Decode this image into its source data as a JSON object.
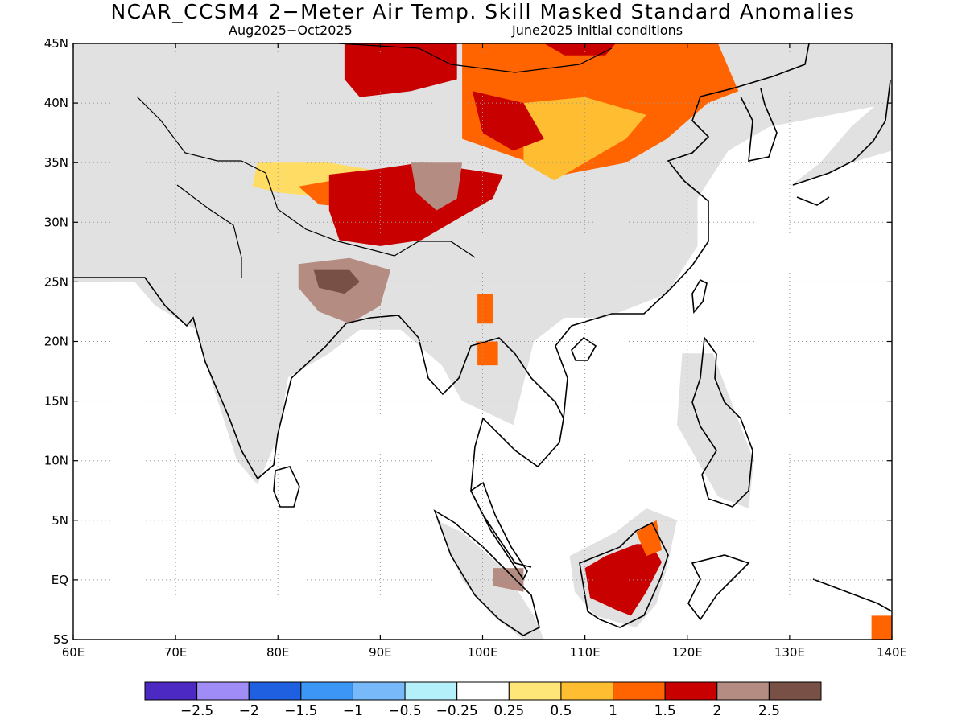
{
  "header": {
    "title": "NCAR_CCSM4 2−Meter Air Temp. Skill Masked Standard Anomalies",
    "period": "Aug2025−Oct2025",
    "init": "June2025 initial conditions"
  },
  "map": {
    "lon_range": [
      60,
      140
    ],
    "lat_range": [
      -5,
      45
    ],
    "lon_ticks": [
      {
        "v": 60,
        "label": "60E"
      },
      {
        "v": 70,
        "label": "70E"
      },
      {
        "v": 80,
        "label": "80E"
      },
      {
        "v": 90,
        "label": "90E"
      },
      {
        "v": 100,
        "label": "100E"
      },
      {
        "v": 110,
        "label": "110E"
      },
      {
        "v": 120,
        "label": "120E"
      },
      {
        "v": 130,
        "label": "130E"
      },
      {
        "v": 140,
        "label": "140E"
      }
    ],
    "lat_ticks": [
      {
        "v": 45,
        "label": "45N"
      },
      {
        "v": 40,
        "label": "40N"
      },
      {
        "v": 35,
        "label": "35N"
      },
      {
        "v": 30,
        "label": "30N"
      },
      {
        "v": 25,
        "label": "25N"
      },
      {
        "v": 20,
        "label": "20N"
      },
      {
        "v": 15,
        "label": "15N"
      },
      {
        "v": 10,
        "label": "10N"
      },
      {
        "v": 5,
        "label": "5N"
      },
      {
        "v": 0,
        "label": "EQ"
      },
      {
        "v": -5,
        "label": "5S"
      }
    ],
    "mask_color": "#e1e1e1",
    "regions": [
      {
        "name": "warm-1-0-north-china",
        "color": "#ff6400",
        "pts": [
          [
            98,
            45
          ],
          [
            123,
            45
          ],
          [
            125,
            41
          ],
          [
            122,
            40
          ],
          [
            118,
            37
          ],
          [
            114,
            35
          ],
          [
            108,
            34
          ],
          [
            103,
            35.5
          ],
          [
            98,
            37
          ]
        ]
      },
      {
        "name": "warm-0-5-ordos",
        "color": "#ffbe32",
        "pts": [
          [
            104,
            40
          ],
          [
            110,
            40.5
          ],
          [
            116,
            39
          ],
          [
            114,
            37
          ],
          [
            110,
            35
          ],
          [
            107,
            33.5
          ],
          [
            104,
            35
          ]
        ]
      },
      {
        "name": "warm-1-5-central-asia",
        "color": "#c80000",
        "pts": [
          [
            86.5,
            45
          ],
          [
            97.5,
            45
          ],
          [
            97.5,
            42
          ],
          [
            93,
            41
          ],
          [
            88,
            40.5
          ],
          [
            86.5,
            42
          ]
        ]
      },
      {
        "name": "warm-1-5-north-edge",
        "color": "#c80000",
        "pts": [
          [
            106,
            45
          ],
          [
            113,
            45
          ],
          [
            112,
            44
          ],
          [
            108,
            44
          ]
        ]
      },
      {
        "name": "warm-1-5-taklamakan-east",
        "color": "#c80000",
        "pts": [
          [
            99,
            41
          ],
          [
            104,
            40
          ],
          [
            106,
            37
          ],
          [
            103,
            36
          ],
          [
            100,
            37.5
          ]
        ]
      },
      {
        "name": "warm-0-5-tibet-band",
        "color": "#ffdc64",
        "pts": [
          [
            78,
            35
          ],
          [
            85,
            35
          ],
          [
            92,
            34
          ],
          [
            96,
            33
          ],
          [
            92,
            31
          ],
          [
            86,
            32
          ],
          [
            80,
            32.5
          ],
          [
            77.5,
            33
          ]
        ]
      },
      {
        "name": "warm-1-0-tibet",
        "color": "#ff6400",
        "pts": [
          [
            82,
            33
          ],
          [
            92,
            34.5
          ],
          [
            96,
            34
          ],
          [
            101,
            33
          ],
          [
            96,
            31
          ],
          [
            90,
            31
          ],
          [
            84,
            31.5
          ]
        ]
      },
      {
        "name": "warm-1-5-tibet",
        "color": "#c80000",
        "pts": [
          [
            85,
            34
          ],
          [
            90,
            34.5
          ],
          [
            94,
            35
          ],
          [
            98,
            34.5
          ],
          [
            102,
            34
          ],
          [
            101,
            32
          ],
          [
            97,
            30
          ],
          [
            94,
            28.5
          ],
          [
            90,
            28
          ],
          [
            86,
            28.5
          ],
          [
            85,
            31
          ]
        ]
      },
      {
        "name": "warm-2-0-tibet-core",
        "color": "#b48c82",
        "pts": [
          [
            93,
            35
          ],
          [
            98,
            35
          ],
          [
            97.5,
            32
          ],
          [
            95.5,
            31
          ],
          [
            93.5,
            32.5
          ]
        ]
      },
      {
        "name": "warm-2-0-india-north",
        "color": "#b48c82",
        "pts": [
          [
            82,
            26.5
          ],
          [
            87,
            27
          ],
          [
            91,
            26
          ],
          [
            90,
            23
          ],
          [
            87,
            21.5
          ],
          [
            84,
            22.5
          ],
          [
            82,
            24.5
          ]
        ]
      },
      {
        "name": "warm-2-5-india-north",
        "color": "#785046",
        "pts": [
          [
            83.5,
            26
          ],
          [
            87,
            26
          ],
          [
            88,
            25
          ],
          [
            86.5,
            24
          ],
          [
            84,
            24.5
          ]
        ]
      },
      {
        "name": "warm-1-5-borneo",
        "color": "#c80000",
        "pts": [
          [
            110,
            1
          ],
          [
            112,
            2
          ],
          [
            115,
            3
          ],
          [
            116.5,
            3
          ],
          [
            117.5,
            1.5
          ],
          [
            116,
            -1
          ],
          [
            114.5,
            -3
          ],
          [
            113,
            -2.5
          ],
          [
            110.5,
            -1.5
          ]
        ]
      },
      {
        "name": "warm-1-0-borneo-ne",
        "color": "#ff6400",
        "pts": [
          [
            115,
            4
          ],
          [
            117,
            5
          ],
          [
            117.5,
            2.5
          ],
          [
            116,
            2
          ]
        ]
      },
      {
        "name": "warm-1-0-new-guinea",
        "color": "#ff6400",
        "pts": [
          [
            138,
            -3
          ],
          [
            140,
            -3
          ],
          [
            140,
            -5
          ],
          [
            138,
            -5
          ]
        ]
      },
      {
        "name": "warm-1-0-myanmar",
        "color": "#ff6400",
        "pts": [
          [
            99.5,
            24
          ],
          [
            101,
            24
          ],
          [
            101,
            21.5
          ],
          [
            99.5,
            21.5
          ]
        ]
      },
      {
        "name": "warm-1-0-laos",
        "color": "#ff6400",
        "pts": [
          [
            99.5,
            20
          ],
          [
            101.5,
            20
          ],
          [
            101.5,
            18
          ],
          [
            99.5,
            18
          ]
        ]
      },
      {
        "name": "warm-2-0-sumatra",
        "color": "#b48c82",
        "pts": [
          [
            101,
            1
          ],
          [
            104,
            1
          ],
          [
            104,
            -1
          ],
          [
            101,
            -0.5
          ]
        ]
      }
    ],
    "masked_regions": [
      {
        "name": "mask-north",
        "pts": [
          [
            60,
            45
          ],
          [
            140,
            45
          ],
          [
            140,
            40
          ],
          [
            128,
            38
          ],
          [
            124,
            36
          ],
          [
            121,
            32
          ],
          [
            121,
            28
          ],
          [
            118,
            24
          ],
          [
            112,
            22
          ],
          [
            108,
            22
          ],
          [
            105,
            20
          ],
          [
            103,
            13
          ],
          [
            98,
            15
          ],
          [
            96,
            18
          ],
          [
            92,
            21
          ],
          [
            88,
            21
          ],
          [
            85,
            19
          ],
          [
            81,
            17
          ],
          [
            80,
            12
          ],
          [
            78,
            8
          ],
          [
            76,
            10
          ],
          [
            73,
            18
          ],
          [
            72,
            21
          ],
          [
            68,
            23
          ],
          [
            66,
            25
          ],
          [
            60,
            25
          ]
        ]
      },
      {
        "name": "mask-japan",
        "pts": [
          [
            130,
            33
          ],
          [
            132,
            33.5
          ],
          [
            136,
            35
          ],
          [
            140,
            36
          ],
          [
            140,
            41
          ],
          [
            136,
            38
          ],
          [
            133,
            35
          ]
        ]
      },
      {
        "name": "mask-philippines",
        "pts": [
          [
            119.5,
            19
          ],
          [
            122.5,
            19
          ],
          [
            126.5,
            10
          ],
          [
            126,
            6
          ],
          [
            123,
            7
          ],
          [
            121,
            10
          ],
          [
            119,
            13
          ]
        ]
      },
      {
        "name": "mask-borneo",
        "pts": [
          [
            108.5,
            2
          ],
          [
            113,
            4
          ],
          [
            116,
            6
          ],
          [
            119,
            5
          ],
          [
            118,
            1
          ],
          [
            117,
            -2
          ],
          [
            115,
            -4
          ],
          [
            111,
            -3
          ],
          [
            109,
            -1
          ]
        ]
      },
      {
        "name": "mask-sumatra",
        "pts": [
          [
            95.5,
            5
          ],
          [
            98,
            4
          ],
          [
            102,
            1
          ],
          [
            105,
            -3
          ],
          [
            106,
            -5
          ],
          [
            104,
            -5
          ],
          [
            101,
            -3
          ],
          [
            98,
            0
          ]
        ]
      }
    ]
  },
  "colorbar": {
    "colors": [
      "#4c29c2",
      "#a08cf7",
      "#1f60e0",
      "#3c96f5",
      "#78b9fa",
      "#b4f0fa",
      "#ffffff",
      "#ffe678",
      "#ffbe32",
      "#ff6400",
      "#c80000",
      "#b48c82",
      "#785046"
    ],
    "labels": [
      "−2.5",
      "−2",
      "−1.5",
      "−1",
      "−0.5",
      "−0.25",
      "0.25",
      "0.5",
      "1",
      "1.5",
      "2",
      "2.5"
    ]
  }
}
